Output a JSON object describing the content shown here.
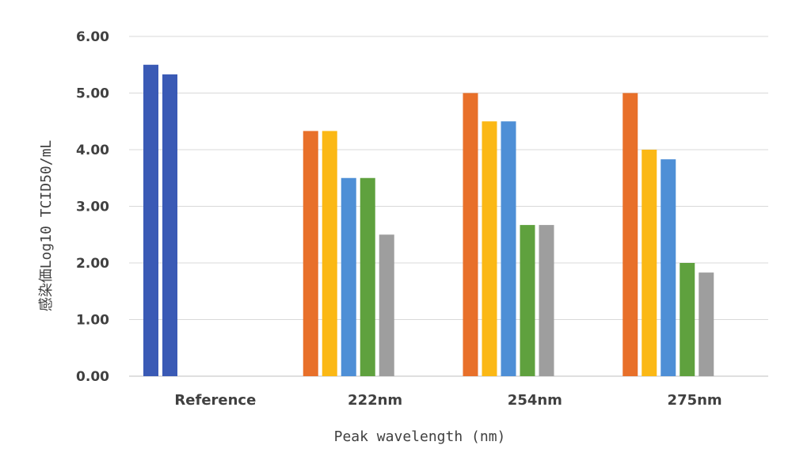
{
  "chart_data": {
    "type": "bar",
    "title": "",
    "xlabel": "Peak wavelength (nm)",
    "ylabel": "感染価Log10 TCID50/mL",
    "ylim": [
      0,
      6
    ],
    "yticks": [
      "0.00",
      "1.00",
      "2.00",
      "3.00",
      "4.00",
      "5.00",
      "6.00"
    ],
    "grid": true,
    "legend": "none",
    "categories": [
      "Reference",
      "222nm",
      "254nm",
      "275nm"
    ],
    "groups": [
      {
        "category": "Reference",
        "bars": [
          {
            "value": 5.5,
            "color": "#3a5ab5"
          },
          {
            "value": 5.33,
            "color": "#3a5ab5"
          }
        ]
      },
      {
        "category": "222nm",
        "bars": [
          {
            "value": 4.33,
            "color": "#e8702a"
          },
          {
            "value": 4.33,
            "color": "#fbb815"
          },
          {
            "value": 3.5,
            "color": "#4e8fd6"
          },
          {
            "value": 3.5,
            "color": "#5fa13e"
          },
          {
            "value": 2.5,
            "color": "#9e9e9e"
          }
        ]
      },
      {
        "category": "254nm",
        "bars": [
          {
            "value": 5.0,
            "color": "#e8702a"
          },
          {
            "value": 4.5,
            "color": "#fbb815"
          },
          {
            "value": 4.5,
            "color": "#4e8fd6"
          },
          {
            "value": 2.67,
            "color": "#5fa13e"
          },
          {
            "value": 2.67,
            "color": "#9e9e9e"
          }
        ]
      },
      {
        "category": "275nm",
        "bars": [
          {
            "value": 5.0,
            "color": "#e8702a"
          },
          {
            "value": 4.0,
            "color": "#fbb815"
          },
          {
            "value": 3.83,
            "color": "#4e8fd6"
          },
          {
            "value": 2.0,
            "color": "#5fa13e"
          },
          {
            "value": 1.83,
            "color": "#9e9e9e"
          }
        ]
      }
    ]
  }
}
